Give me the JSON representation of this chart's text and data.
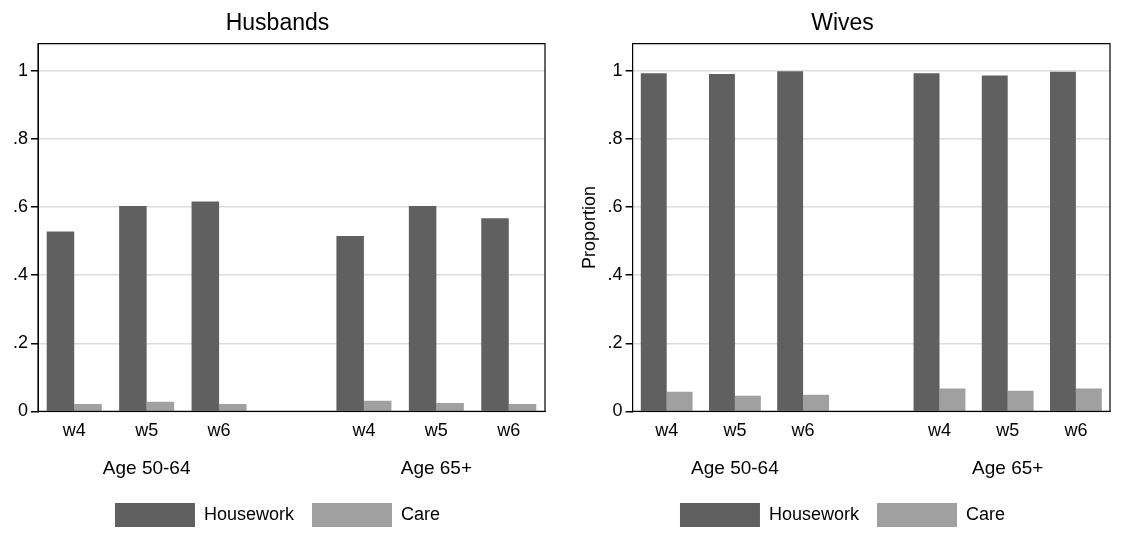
{
  "chart_data": [
    {
      "type": "bar",
      "title": "Husbands",
      "categories": [
        "w4",
        "w5",
        "w6",
        null,
        "w4",
        "w5",
        "w6"
      ],
      "series": [
        {
          "name": "Housework",
          "color": "#606060",
          "values": [
            0.528,
            0.603,
            0.616,
            null,
            0.515,
            0.603,
            0.567
          ]
        },
        {
          "name": "Care",
          "color": "#a0a0a0",
          "values": [
            0.022,
            0.028,
            0.022,
            null,
            0.031,
            0.025,
            0.022
          ]
        }
      ],
      "ylim": [
        0,
        1.08
      ],
      "yticks": [
        {
          "value": 0,
          "label": "0"
        },
        {
          "value": 0.2,
          "label": ".2"
        },
        {
          "value": 0.4,
          "label": ".4"
        },
        {
          "value": 0.6,
          "label": ".6"
        },
        {
          "value": 0.8,
          "label": ".8"
        },
        {
          "value": 1,
          "label": "1"
        }
      ],
      "grid": "y",
      "legend": "bottom",
      "annotations": [
        "Age 50-64",
        "Age 65+"
      ]
    },
    {
      "type": "bar",
      "title": "Wives",
      "ylabel": "Proportion",
      "categories": [
        "w4",
        "w5",
        "w6",
        null,
        "w4",
        "w5",
        "w6"
      ],
      "series": [
        {
          "name": "Housework",
          "color": "#606060",
          "values": [
            0.993,
            0.991,
            0.999,
            null,
            0.993,
            0.986,
            0.997
          ]
        },
        {
          "name": "Care",
          "color": "#a0a0a0",
          "values": [
            0.058,
            0.046,
            0.049,
            null,
            0.067,
            0.061,
            0.067
          ]
        }
      ],
      "ylim": [
        0,
        1.08
      ],
      "yticks": [
        {
          "value": 0,
          "label": "0"
        },
        {
          "value": 0.2,
          "label": ".2"
        },
        {
          "value": 0.4,
          "label": ".4"
        },
        {
          "value": 0.6,
          "label": ".6"
        },
        {
          "value": 0.8,
          "label": ".8"
        },
        {
          "value": 1,
          "label": "1"
        }
      ],
      "grid": "y",
      "legend": "bottom",
      "annotations": [
        "Age 50-64",
        "Age 65+"
      ]
    }
  ]
}
